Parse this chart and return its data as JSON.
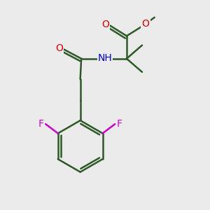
{
  "background_color": "#ebebeb",
  "bond_color": "#2d5a27",
  "bond_width": 1.8,
  "atom_colors": {
    "O": "#dd0000",
    "N": "#0000cc",
    "F": "#cc00cc",
    "H": "#888888"
  },
  "font_size": 10,
  "figsize": [
    3.0,
    3.0
  ],
  "dpi": 100
}
